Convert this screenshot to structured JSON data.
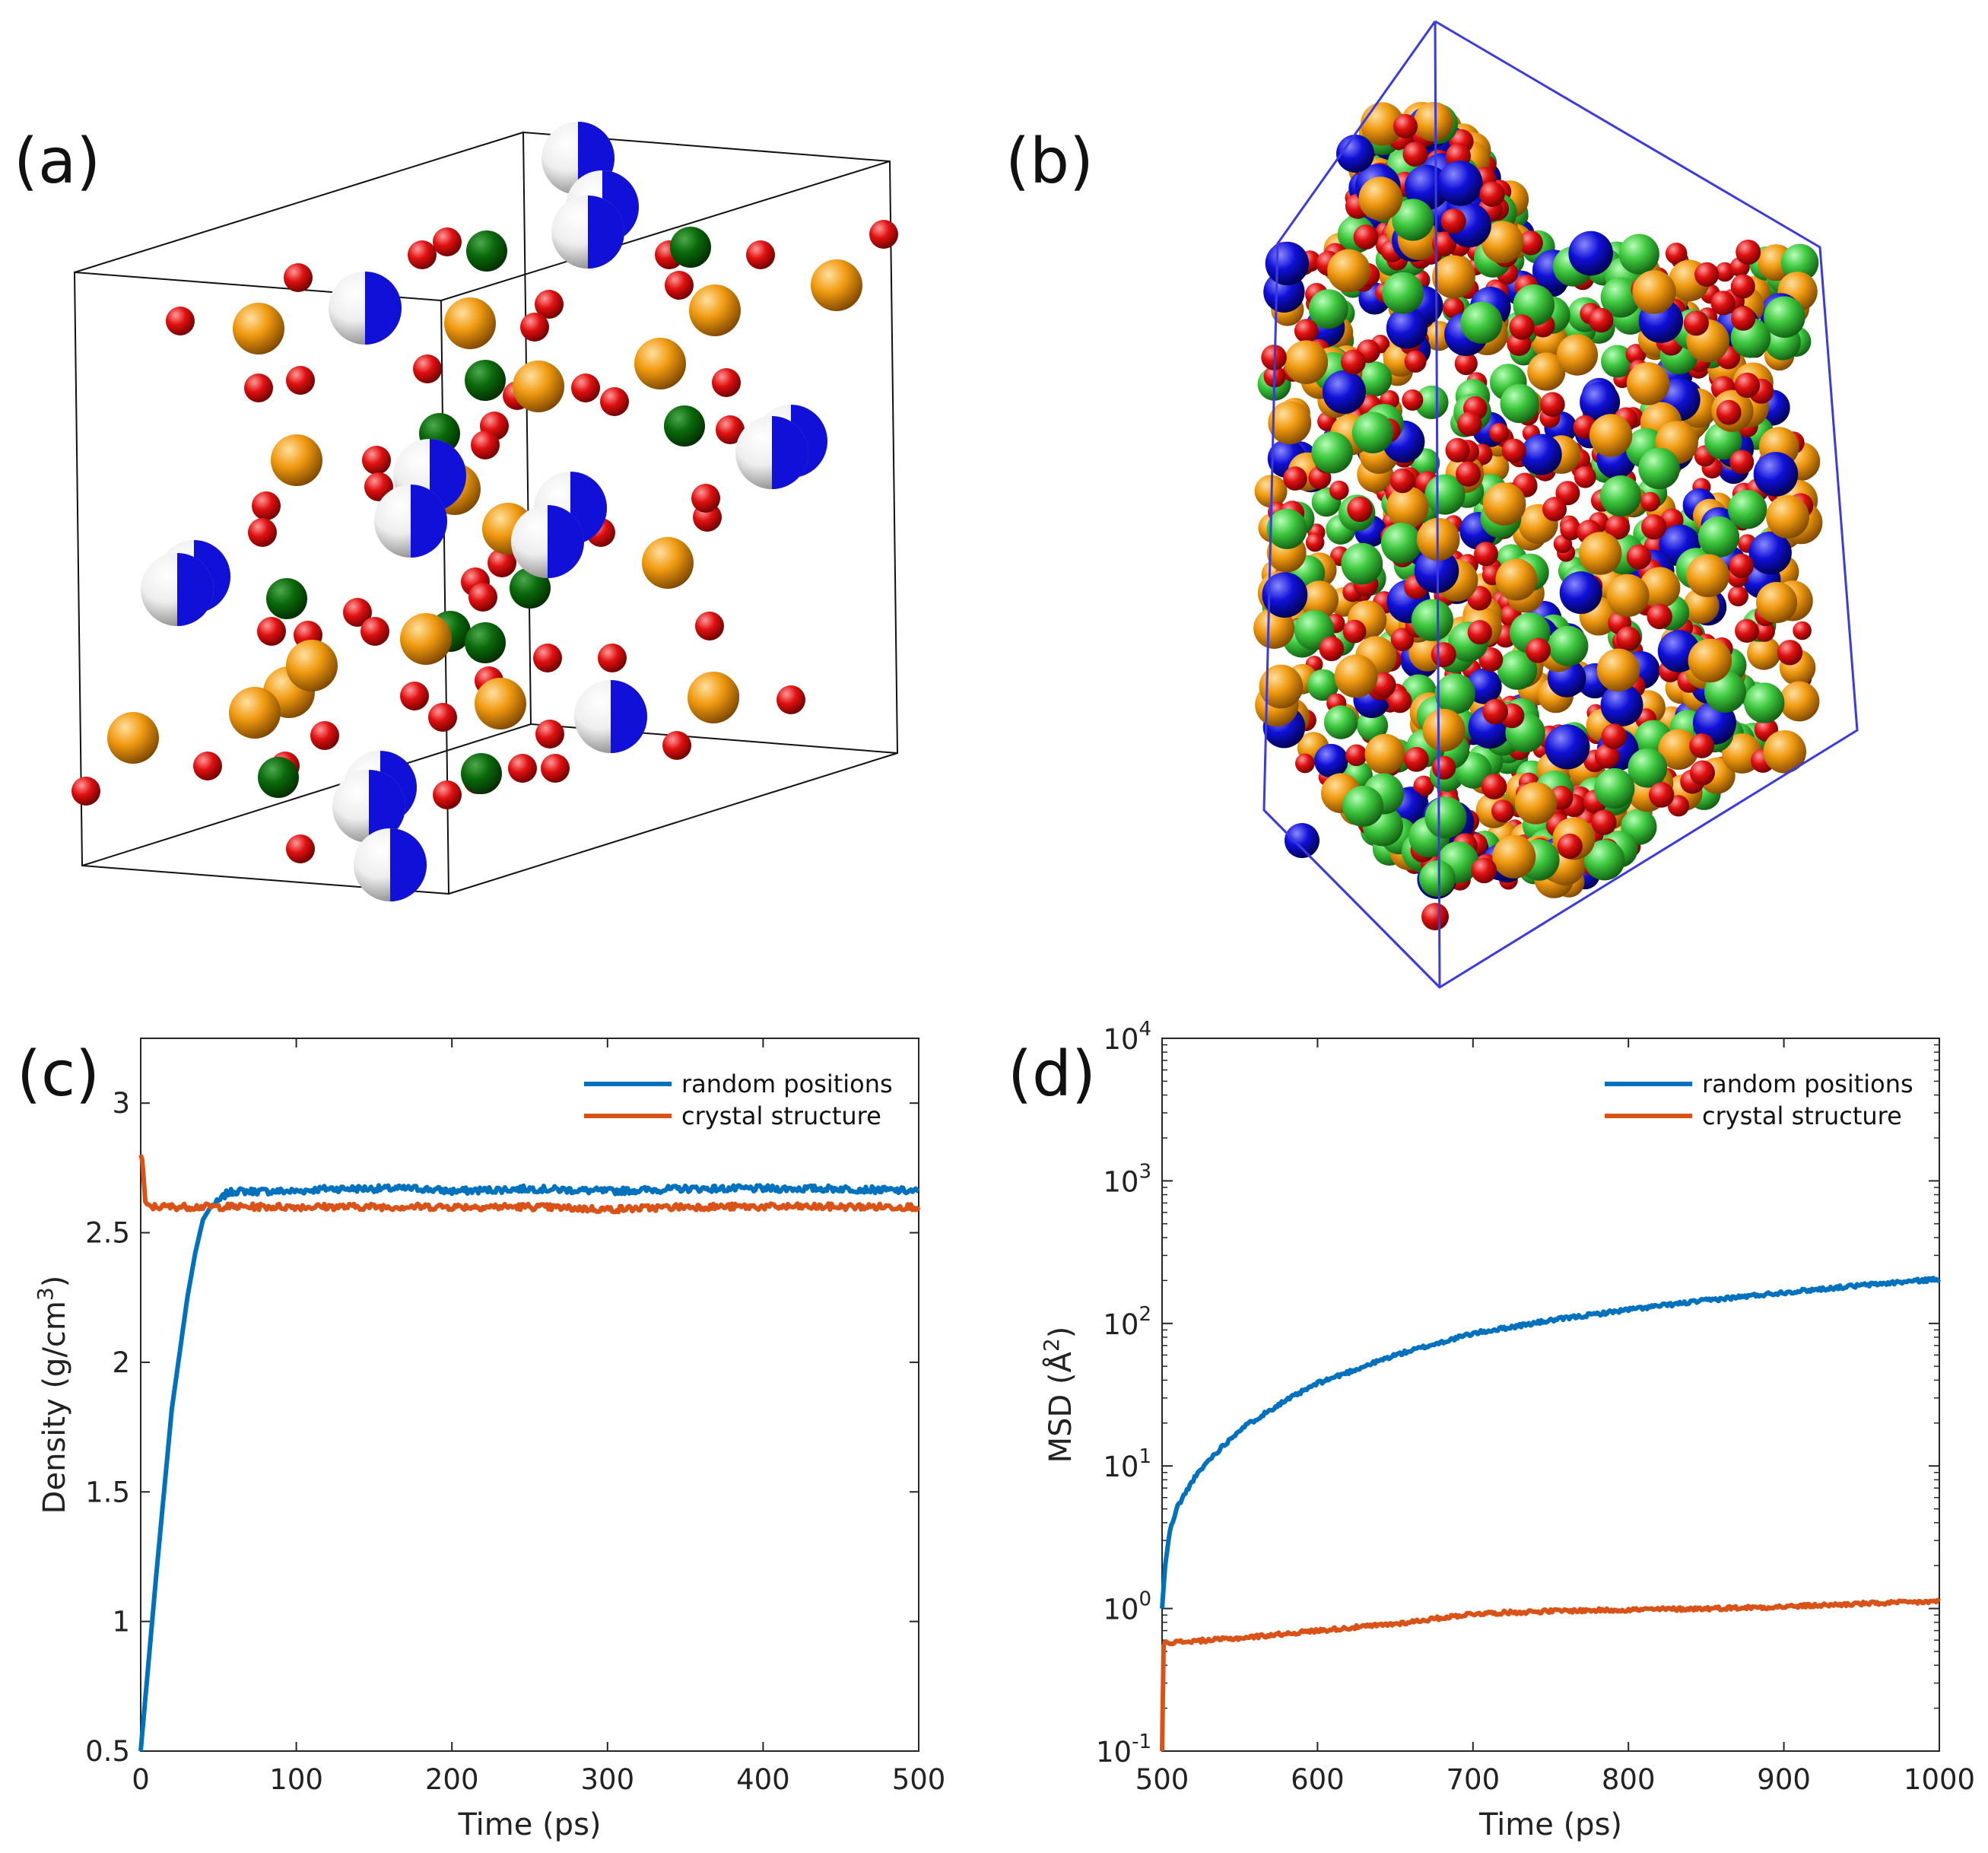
{
  "panels": {
    "a": {
      "label": "(a)"
    },
    "b": {
      "label": "(b)"
    },
    "c": {
      "label": "(c)"
    },
    "d": {
      "label": "(d)"
    }
  },
  "colors": {
    "blue_series": "#0072bd",
    "orange_series": "#d95319",
    "atom_red": "#e01010",
    "atom_green_dark": "#0a6a0a",
    "atom_green_light": "#3ec83e",
    "atom_orange": "#f09a10",
    "atom_blue": "#1010d8",
    "atom_white": "#f0f0f0",
    "box_black": "#111111",
    "box_blue": "#3a3ae0"
  },
  "chart_data": [
    {
      "id": "c",
      "type": "line",
      "title": "",
      "xlabel": "Time (ps)",
      "ylabel": "Density (g/cm",
      "ylabel_sup": "3",
      "ylabel_end": ")",
      "xlim": [
        0,
        500
      ],
      "ylim": [
        0.5,
        3.25
      ],
      "xticks": [
        0,
        100,
        200,
        300,
        400,
        500
      ],
      "yticks": [
        0.5,
        1,
        1.5,
        2,
        2.5,
        3
      ],
      "ytick_labels": [
        "0.5",
        "1",
        "1.5",
        "2",
        "2.5",
        "3"
      ],
      "legend_position": "top-right",
      "series": [
        {
          "name": "random positions",
          "color": "#0072bd",
          "x": [
            0,
            10,
            20,
            30,
            35,
            40,
            45,
            50,
            55,
            60,
            80,
            100,
            120,
            150,
            180,
            200,
            250,
            300,
            350,
            400,
            450,
            500
          ],
          "values": [
            0.5,
            1.18,
            1.82,
            2.25,
            2.42,
            2.55,
            2.6,
            2.62,
            2.65,
            2.66,
            2.66,
            2.66,
            2.67,
            2.67,
            2.67,
            2.66,
            2.67,
            2.66,
            2.67,
            2.67,
            2.67,
            2.66
          ]
        },
        {
          "name": "crystal structure",
          "color": "#d95319",
          "x": [
            0,
            1,
            2,
            3,
            5,
            10,
            50,
            100,
            150,
            200,
            250,
            300,
            350,
            400,
            450,
            500
          ],
          "values": [
            2.8,
            2.78,
            2.7,
            2.62,
            2.6,
            2.6,
            2.6,
            2.6,
            2.6,
            2.6,
            2.6,
            2.59,
            2.6,
            2.6,
            2.6,
            2.6
          ]
        }
      ]
    },
    {
      "id": "d",
      "type": "line",
      "yscale": "log",
      "title": "",
      "xlabel": "Time (ps)",
      "ylabel": "MSD (Å",
      "ylabel_sup": "2",
      "ylabel_end": ")",
      "xlim": [
        500,
        1000
      ],
      "ylim": [
        0.1,
        10000
      ],
      "xticks": [
        500,
        600,
        700,
        800,
        900,
        1000
      ],
      "yticks": [
        {
          "base": "10",
          "exp": "-1",
          "value": 0.1
        },
        {
          "base": "10",
          "exp": "0",
          "value": 1
        },
        {
          "base": "10",
          "exp": "1",
          "value": 10
        },
        {
          "base": "10",
          "exp": "2",
          "value": 100
        },
        {
          "base": "10",
          "exp": "3",
          "value": 1000
        },
        {
          "base": "10",
          "exp": "4",
          "value": 10000
        }
      ],
      "legend_position": "top-right",
      "series": [
        {
          "name": "random positions",
          "color": "#0072bd",
          "x": [
            500,
            502,
            505,
            510,
            520,
            530,
            550,
            575,
            600,
            650,
            700,
            750,
            800,
            850,
            900,
            950,
            1000
          ],
          "values": [
            1.0,
            2.0,
            3.5,
            5.2,
            8.0,
            11,
            18,
            27,
            38,
            60,
            85,
            105,
            125,
            145,
            165,
            185,
            205
          ]
        },
        {
          "name": "crystal structure",
          "color": "#d95319",
          "x": [
            500,
            501,
            502,
            510,
            550,
            600,
            650,
            700,
            750,
            800,
            850,
            900,
            950,
            1000
          ],
          "values": [
            0.1,
            0.55,
            0.58,
            0.58,
            0.62,
            0.7,
            0.78,
            0.92,
            0.96,
            0.98,
            1.0,
            1.03,
            1.08,
            1.12
          ]
        }
      ]
    }
  ]
}
